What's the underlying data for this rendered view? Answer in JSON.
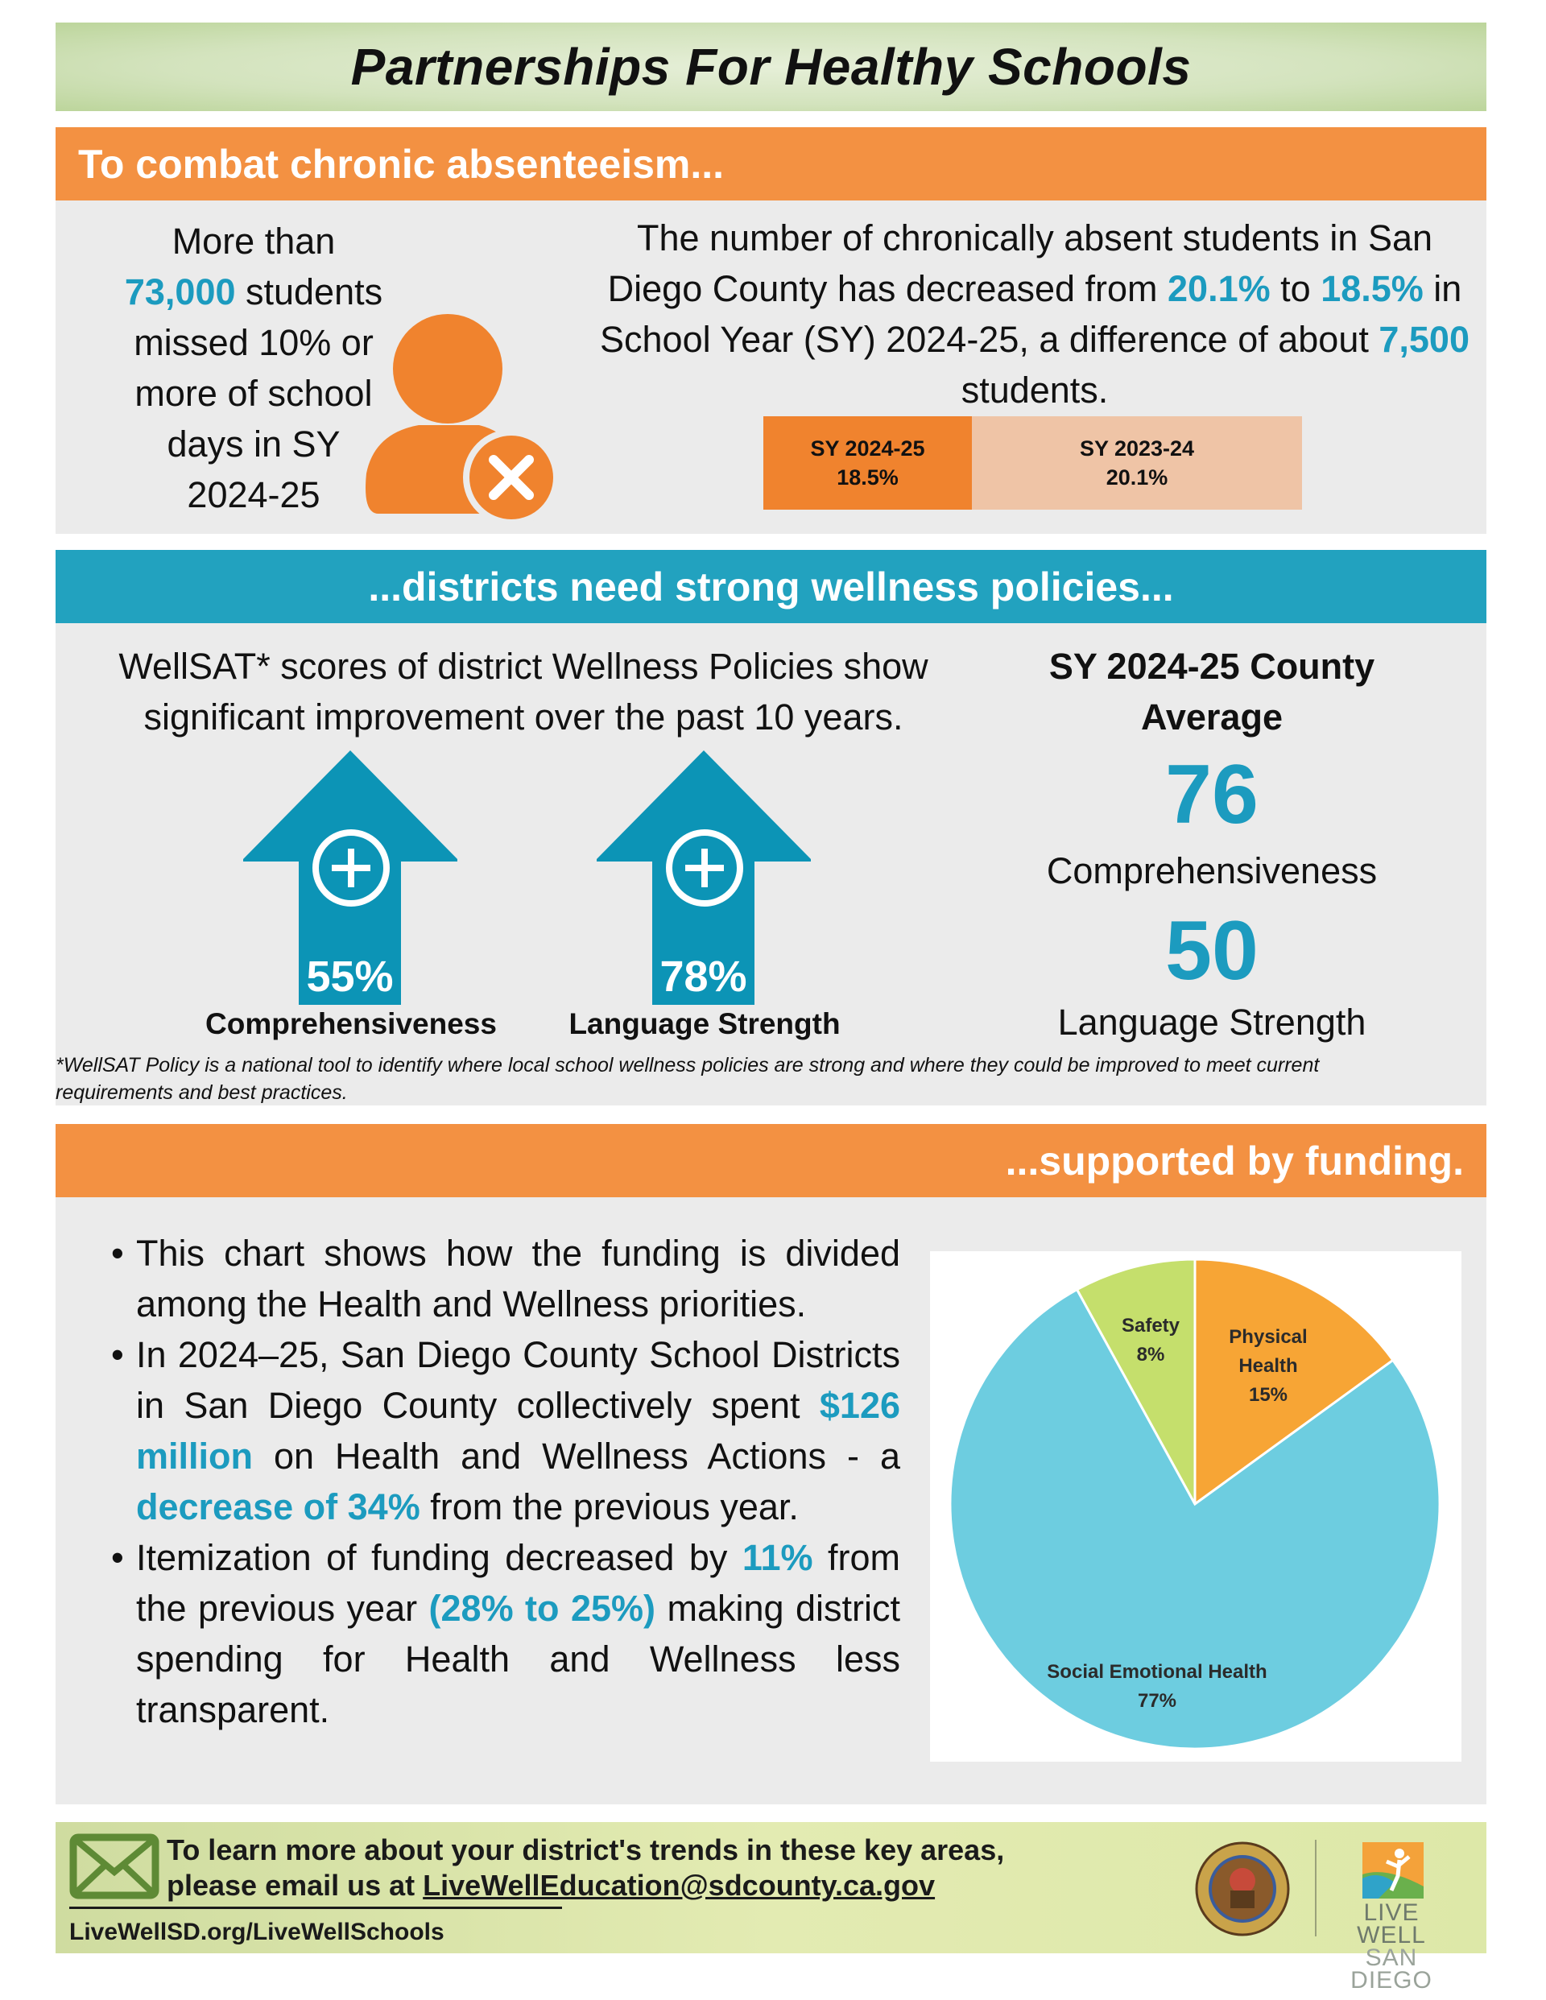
{
  "title": "Partnerships For Healthy Schools",
  "section1": {
    "header": "To combat chronic absenteeism...",
    "left": {
      "l1": "More than",
      "num": "73,000",
      "l2": " students",
      "l3": "missed 10% or",
      "l4": "more of school",
      "l5": "days in SY",
      "l6": "2024-25"
    },
    "right": {
      "a": "The number of chronically absent students in San Diego County has decreased from ",
      "b": "20.1%",
      "c": " to ",
      "d": "18.5%",
      "e": " in School Year (SY) 2024-25, a difference of about ",
      "f": "7,500",
      "g": " students."
    },
    "bars": [
      {
        "label": "SY 2024-25",
        "value": "18.5%",
        "color": "#f0832e"
      },
      {
        "label": "SY 2023-24",
        "value": "20.1%",
        "color": "#efc4a6"
      }
    ],
    "icon": "person-x-icon"
  },
  "section2": {
    "header": "...districts need strong wellness policies...",
    "intro": "WellSAT* scores of district Wellness Policies show significant improvement over the past 10 years.",
    "arrows": [
      {
        "value": "55%",
        "label": "Comprehensiveness"
      },
      {
        "value": "78%",
        "label": "Language Strength"
      }
    ],
    "county_title": "SY 2024-25 County Average",
    "county": [
      {
        "value": "76",
        "label": "Comprehensiveness"
      },
      {
        "value": "50",
        "label": "Language Strength"
      }
    ],
    "footnote": "*WellSAT Policy is a national tool to identify where local school wellness policies are strong and where they could be improved to meet current requirements and best practices."
  },
  "section3": {
    "header": "...supported by funding.",
    "b1": "This chart shows how the funding is divided among the Health and Wellness priorities.",
    "b2": {
      "a": "In 2024–25, San Diego County School Districts in San Diego County collectively spent ",
      "b": "$126 million",
      "c": " on Health and Wellness Actions - a ",
      "d": "decrease of 34%",
      "e": " from the previous year."
    },
    "b3": {
      "a": "Itemization of funding decreased by ",
      "b": "11%",
      "c": " from the previous year ",
      "d": "(28% to 25%)",
      "e": " making district spending for Health and Wellness less transparent."
    }
  },
  "chart_data": {
    "type": "pie",
    "categories": [
      "Physical Health",
      "Social Emotional Health",
      "Safety"
    ],
    "values": [
      15,
      77,
      8
    ],
    "labels": [
      "15%",
      "77%",
      "8%"
    ],
    "colors": [
      "#f7a535",
      "#6dcde0",
      "#c5df6c"
    ],
    "legend": "none"
  },
  "footer": {
    "line1": "To learn more about your district's trends in these key areas,",
    "line2": "please email us at ",
    "email": "LiveWellEducation@sdcounty.ca.gov",
    "url": "LiveWellSD.org/LiveWellSchools",
    "logo_top": "LIVE WELL",
    "logo_bottom": "SAN DIEGO",
    "seal_text": "THE NOBLEST MOTIVE IS THE PUBLIC GOOD"
  }
}
